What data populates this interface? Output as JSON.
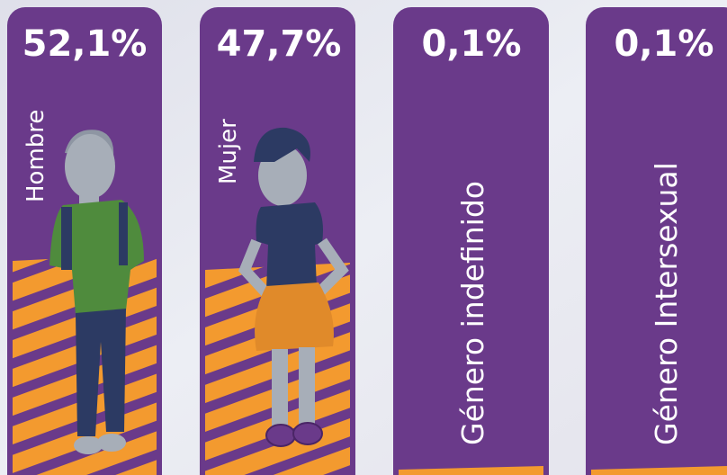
{
  "cards": [
    {
      "value": "52,1%",
      "label": "Hombre"
    },
    {
      "value": "47,7%",
      "label": "Mujer"
    },
    {
      "value": "0,1%",
      "label": "Género indefinido"
    },
    {
      "value": "0,1%",
      "label": "Género Intersexual"
    }
  ]
}
